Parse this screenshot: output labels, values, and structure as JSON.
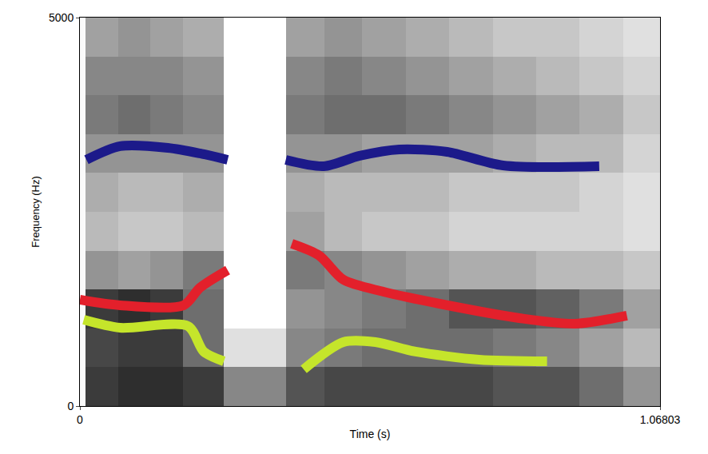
{
  "chart_data": {
    "type": "line",
    "x_label": "Time (s)",
    "y_label": "Frequency (Hz)",
    "xlim": [
      0,
      1.06803
    ],
    "xticks": [
      0,
      1.06803
    ],
    "ylim": [
      0,
      5000
    ],
    "yticks": [
      0,
      5000
    ],
    "grid": false,
    "spectrogram": {
      "x_edges": [
        0,
        0.01,
        0.07,
        0.13,
        0.19,
        0.265,
        0.38,
        0.45,
        0.52,
        0.6,
        0.68,
        0.76,
        0.84,
        0.92,
        1.0,
        1.06803
      ],
      "y_edges": [
        0,
        500,
        1000,
        1500,
        2000,
        2500,
        3000,
        3500,
        4000,
        4500,
        5000
      ],
      "z": [
        [
          0.05,
          0.8,
          0.85,
          0.85,
          0.8,
          0.5,
          0.7,
          0.75,
          0.75,
          0.75,
          0.75,
          0.7,
          0.7,
          0.6,
          0.45
        ],
        [
          0.05,
          0.75,
          0.8,
          0.8,
          0.6,
          0.15,
          0.5,
          0.55,
          0.6,
          0.6,
          0.6,
          0.55,
          0.5,
          0.4,
          0.3
        ],
        [
          0.05,
          0.8,
          0.85,
          0.8,
          0.6,
          0.03,
          0.45,
          0.5,
          0.55,
          0.6,
          0.7,
          0.7,
          0.65,
          0.55,
          0.4
        ],
        [
          0.05,
          0.45,
          0.4,
          0.45,
          0.55,
          0.03,
          0.55,
          0.5,
          0.45,
          0.4,
          0.35,
          0.35,
          0.3,
          0.3,
          0.25
        ],
        [
          0.05,
          0.3,
          0.25,
          0.25,
          0.3,
          0.03,
          0.4,
          0.3,
          0.25,
          0.25,
          0.2,
          0.2,
          0.2,
          0.2,
          0.15
        ],
        [
          0.05,
          0.35,
          0.3,
          0.3,
          0.35,
          0.03,
          0.35,
          0.3,
          0.3,
          0.3,
          0.25,
          0.25,
          0.25,
          0.2,
          0.15
        ],
        [
          0.05,
          0.45,
          0.45,
          0.45,
          0.45,
          0.03,
          0.45,
          0.45,
          0.4,
          0.4,
          0.4,
          0.35,
          0.3,
          0.3,
          0.2
        ],
        [
          0.05,
          0.55,
          0.6,
          0.55,
          0.5,
          0.03,
          0.55,
          0.6,
          0.6,
          0.55,
          0.5,
          0.45,
          0.4,
          0.35,
          0.25
        ],
        [
          0.05,
          0.5,
          0.5,
          0.5,
          0.45,
          0.03,
          0.5,
          0.55,
          0.5,
          0.45,
          0.4,
          0.35,
          0.3,
          0.25,
          0.2
        ],
        [
          0.05,
          0.4,
          0.45,
          0.4,
          0.35,
          0.03,
          0.4,
          0.45,
          0.4,
          0.35,
          0.3,
          0.25,
          0.25,
          0.2,
          0.15
        ]
      ]
    },
    "series": [
      {
        "color": "#1c1a8a",
        "x": [
          0.012,
          0.074,
          0.162,
          0.221,
          0.272,
          null,
          0.379,
          0.449,
          0.515,
          0.588,
          0.676,
          0.779,
          0.956
        ],
        "values": [
          3169,
          3344,
          3324,
          3252,
          3169,
          null,
          3169,
          3087,
          3221,
          3303,
          3272,
          3097,
          3087
        ]
      },
      {
        "color": "#e3202b",
        "x": [
          0.0,
          0.074,
          0.191,
          0.221,
          0.272,
          null,
          0.39,
          0.441,
          0.485,
          0.559,
          0.662,
          0.809,
          0.912,
          1.007
        ],
        "values": [
          1369,
          1297,
          1297,
          1523,
          1749,
          null,
          2089,
          1935,
          1626,
          1471,
          1317,
          1132,
          1060,
          1163
        ]
      },
      {
        "color": "#c5e52b",
        "x": [
          0.007,
          0.074,
          0.199,
          0.228,
          0.265,
          null,
          0.412,
          0.485,
          0.544,
          0.618,
          0.735,
          0.86
        ],
        "values": [
          1111,
          1008,
          1029,
          700,
          576,
          null,
          473,
          823,
          823,
          700,
          597,
          576
        ]
      }
    ]
  }
}
